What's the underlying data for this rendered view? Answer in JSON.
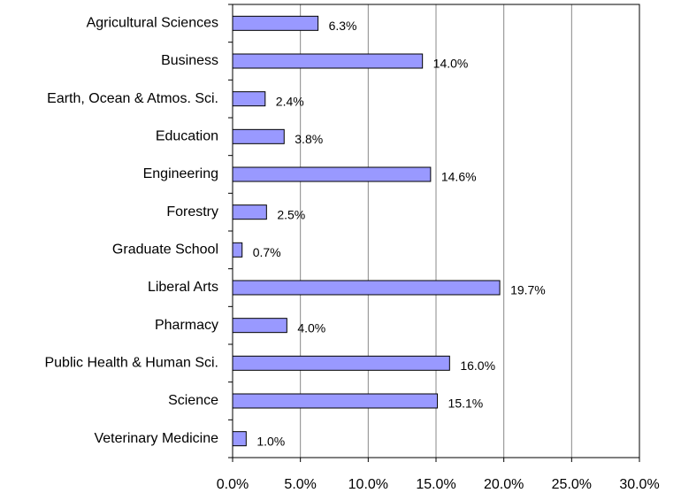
{
  "chart_data": {
    "type": "bar",
    "orientation": "horizontal",
    "categories": [
      "Agricultural Sciences",
      "Business",
      "Earth, Ocean & Atmos. Sci.",
      "Education",
      "Engineering",
      "Forestry",
      "Graduate School",
      "Liberal Arts",
      "Pharmacy",
      "Public Health & Human Sci.",
      "Science",
      "Veterinary Medicine"
    ],
    "values": [
      6.3,
      14.0,
      2.4,
      3.8,
      14.6,
      2.5,
      0.7,
      19.7,
      4.0,
      16.0,
      15.1,
      1.0
    ],
    "value_labels": [
      "6.3%",
      "14.0%",
      "2.4%",
      "3.8%",
      "14.6%",
      "2.5%",
      "0.7%",
      "19.7%",
      "4.0%",
      "16.0%",
      "15.1%",
      "1.0%"
    ],
    "color": "#9999ff",
    "xlim": [
      0,
      30
    ],
    "xticks": [
      {
        "value": 0,
        "label": "0.0%"
      },
      {
        "value": 5,
        "label": "5.0%"
      },
      {
        "value": 10,
        "label": "10.0%"
      },
      {
        "value": 15,
        "label": "15.0%"
      },
      {
        "value": 20,
        "label": "20.0%"
      },
      {
        "value": 25,
        "label": "25.0%"
      },
      {
        "value": 30,
        "label": "30.0%"
      }
    ],
    "grid": true
  }
}
